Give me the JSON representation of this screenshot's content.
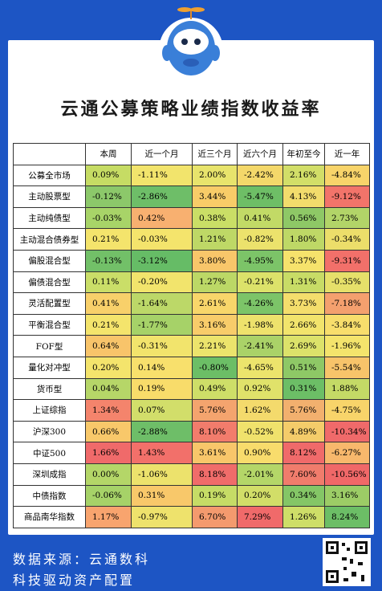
{
  "title": "云通公募策略业绩指数收益率",
  "columns": [
    "本周",
    "近一个月",
    "近三个月",
    "近六个月",
    "年初至今",
    "近一年"
  ],
  "rows": [
    {
      "name": "公募全市场",
      "values": [
        "0.09%",
        "-1.11%",
        "2.00%",
        "-2.42%",
        "2.16%",
        "-4.84%"
      ],
      "colors": [
        "#c6dc64",
        "#f2e46c",
        "#e8e46c",
        "#f4d86a",
        "#d2de68",
        "#f8d46a"
      ]
    },
    {
      "name": "主动股票型",
      "values": [
        "-0.12%",
        "-2.86%",
        "3.44%",
        "-5.47%",
        "4.13%",
        "-9.12%"
      ],
      "colors": [
        "#8cc86a",
        "#6ebe68",
        "#f8cc68",
        "#6ebe66",
        "#f2dc6c",
        "#f2746a"
      ]
    },
    {
      "name": "主动纯债型",
      "values": [
        "-0.03%",
        "0.42%",
        "0.38%",
        "0.41%",
        "0.56%",
        "2.73%"
      ],
      "colors": [
        "#a8d468",
        "#f8b070",
        "#cade66",
        "#c2da66",
        "#8ec866",
        "#b2d468"
      ]
    },
    {
      "name": "主动混合债券型",
      "values": [
        "0.21%",
        "-0.03%",
        "1.21%",
        "-0.82%",
        "1.80%",
        "-0.34%"
      ],
      "colors": [
        "#f4e46c",
        "#f4e46c",
        "#bed866",
        "#ece26c",
        "#bed866",
        "#ecde6a"
      ]
    },
    {
      "name": "偏股混合型",
      "values": [
        "-0.13%",
        "-3.12%",
        "3.80%",
        "-4.95%",
        "3.37%",
        "-9.31%"
      ],
      "colors": [
        "#72c068",
        "#66bc66",
        "#f8c66a",
        "#7cc468",
        "#f6e26c",
        "#f2706a"
      ]
    },
    {
      "name": "偏债混合型",
      "values": [
        "0.11%",
        "-0.20%",
        "1.27%",
        "-0.21%",
        "1.31%",
        "-0.35%"
      ],
      "colors": [
        "#cade68",
        "#f2e46c",
        "#bcd866",
        "#dce26a",
        "#c8dc66",
        "#e6e06a"
      ]
    },
    {
      "name": "灵活配置型",
      "values": [
        "0.41%",
        "-1.64%",
        "2.61%",
        "-4.26%",
        "3.73%",
        "-7.18%"
      ],
      "colors": [
        "#f8d06a",
        "#bcd868",
        "#f8d66a",
        "#7cc468",
        "#f4de6c",
        "#f4a06e"
      ]
    },
    {
      "name": "平衡混合型",
      "values": [
        "0.21%",
        "-1.77%",
        "3.16%",
        "-1.98%",
        "2.66%",
        "-3.84%"
      ],
      "colors": [
        "#f4e46c",
        "#a6d268",
        "#f8cc6a",
        "#eee26c",
        "#f2e46c",
        "#f8de6c"
      ]
    },
    {
      "name": "FOF型",
      "values": [
        "0.64%",
        "-0.31%",
        "2.21%",
        "-2.41%",
        "2.69%",
        "-1.96%"
      ],
      "colors": [
        "#f8c46a",
        "#f2e46c",
        "#ece46c",
        "#aad268",
        "#dce26a",
        "#f4e46c"
      ]
    },
    {
      "name": "量化对冲型",
      "values": [
        "0.20%",
        "0.14%",
        "-0.80%",
        "-4.65%",
        "0.51%",
        "-5.54%"
      ],
      "colors": [
        "#f4e46c",
        "#f8e06c",
        "#6cbe66",
        "#ece46c",
        "#8ec866",
        "#f8c46a"
      ]
    },
    {
      "name": "货币型",
      "values": [
        "0.04%",
        "0.19%",
        "0.49%",
        "0.92%",
        "0.31%",
        "1.88%"
      ],
      "colors": [
        "#b6d668",
        "#f8dc6a",
        "#cede68",
        "#e0e26a",
        "#6cbe66",
        "#c4da66"
      ]
    },
    {
      "name": "上证综指",
      "values": [
        "1.34%",
        "0.07%",
        "5.76%",
        "1.62%",
        "5.76%",
        "-4.75%"
      ],
      "colors": [
        "#f4846c",
        "#d2de6a",
        "#f4a46e",
        "#f4da6c",
        "#f2b06e",
        "#f8d46a"
      ]
    },
    {
      "name": "沪深300",
      "values": [
        "0.66%",
        "-2.88%",
        "8.10%",
        "-0.52%",
        "4.89%",
        "-10.34%"
      ],
      "colors": [
        "#f8c86a",
        "#6ebe68",
        "#f27c6c",
        "#f0e26c",
        "#f4cc6a",
        "#f06a6a"
      ]
    },
    {
      "name": "中证500",
      "values": [
        "1.66%",
        "1.43%",
        "3.61%",
        "0.90%",
        "8.12%",
        "-6.27%"
      ],
      "colors": [
        "#f06a6a",
        "#f2706a",
        "#f8c66a",
        "#f8dc6c",
        "#f06a6a",
        "#f8b86c"
      ]
    },
    {
      "name": "深圳成指",
      "values": [
        "0.00%",
        "-1.06%",
        "8.18%",
        "-2.01%",
        "7.60%",
        "-10.56%"
      ],
      "colors": [
        "#b4d668",
        "#ece26c",
        "#f06c6a",
        "#b4d668",
        "#f07c6c",
        "#f06868"
      ]
    },
    {
      "name": "中债指数",
      "values": [
        "-0.06%",
        "0.31%",
        "0.19%",
        "0.20%",
        "0.34%",
        "3.16%"
      ],
      "colors": [
        "#a6d268",
        "#f8c86a",
        "#c6dc66",
        "#d2de68",
        "#84c666",
        "#9ccc66"
      ]
    },
    {
      "name": "商品南华指数",
      "values": [
        "1.17%",
        "-0.97%",
        "6.70%",
        "7.29%",
        "1.26%",
        "8.24%"
      ],
      "colors": [
        "#f8a46e",
        "#eee26c",
        "#f49a6e",
        "#f06a6a",
        "#cede68",
        "#6cbe66"
      ]
    }
  ],
  "footer": {
    "line1": "数据来源：云通数科",
    "line2": "科技驱动资产配置"
  }
}
